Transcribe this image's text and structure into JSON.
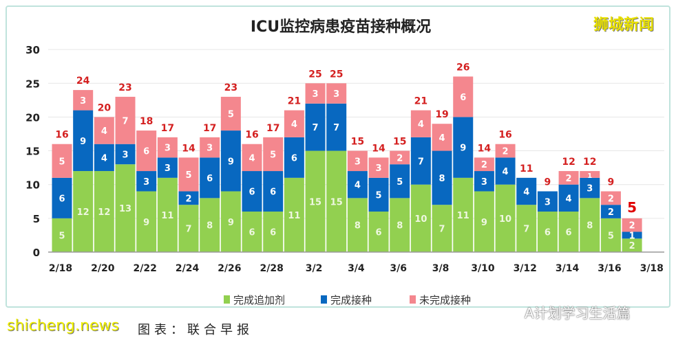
{
  "chart_data": {
    "type": "bar",
    "stacked": true,
    "title": "ICU监控病患疫苗接种概况",
    "categories": [
      "2/18",
      "2/19",
      "2/20",
      "2/21",
      "2/22",
      "2/23",
      "2/24",
      "2/25",
      "2/26",
      "2/27",
      "2/28",
      "3/1",
      "3/2",
      "3/3",
      "3/4",
      "3/5",
      "3/6",
      "3/7",
      "3/8",
      "3/9",
      "3/10",
      "3/11",
      "3/12",
      "3/13",
      "3/14",
      "3/15",
      "3/16",
      "3/17"
    ],
    "tick_labels": [
      "2/18",
      "2/20",
      "2/22",
      "2/24",
      "2/26",
      "2/28",
      "3/2",
      "3/4",
      "3/6",
      "3/8",
      "3/10",
      "3/12",
      "3/14",
      "3/16",
      "3/18"
    ],
    "series": [
      {
        "name": "完成追加剂",
        "color": "#92d050",
        "values": [
          5,
          12,
          12,
          13,
          9,
          11,
          7,
          8,
          9,
          6,
          6,
          11,
          15,
          15,
          8,
          6,
          8,
          10,
          7,
          11,
          9,
          10,
          7,
          6,
          6,
          8,
          5,
          2
        ]
      },
      {
        "name": "完成接种",
        "color": "#0868c0",
        "values": [
          6,
          9,
          4,
          3,
          3,
          3,
          2,
          6,
          9,
          6,
          6,
          6,
          7,
          7,
          4,
          5,
          5,
          7,
          8,
          9,
          3,
          4,
          4,
          3,
          4,
          3,
          2,
          1
        ]
      },
      {
        "name": "未完成接种",
        "color": "#f4878e",
        "values": [
          5,
          3,
          4,
          7,
          6,
          3,
          5,
          3,
          5,
          4,
          5,
          4,
          3,
          3,
          3,
          3,
          2,
          4,
          4,
          6,
          2,
          2,
          0,
          0,
          2,
          1,
          2,
          2
        ]
      }
    ],
    "totals": [
      16,
      24,
      20,
      23,
      18,
      17,
      14,
      17,
      23,
      16,
      17,
      21,
      25,
      25,
      15,
      14,
      15,
      21,
      19,
      26,
      14,
      16,
      11,
      9,
      12,
      12,
      9,
      5
    ],
    "ylim": [
      0,
      30
    ],
    "yticks": [
      0,
      5,
      10,
      15,
      20,
      25,
      30
    ],
    "grid": true,
    "legend": "bottom"
  },
  "watermarks": {
    "top_right": "狮城新闻",
    "bottom_right": "A计划学习生活篇",
    "bottom_left": "shicheng.news",
    "caption": "图表：联合早报"
  }
}
